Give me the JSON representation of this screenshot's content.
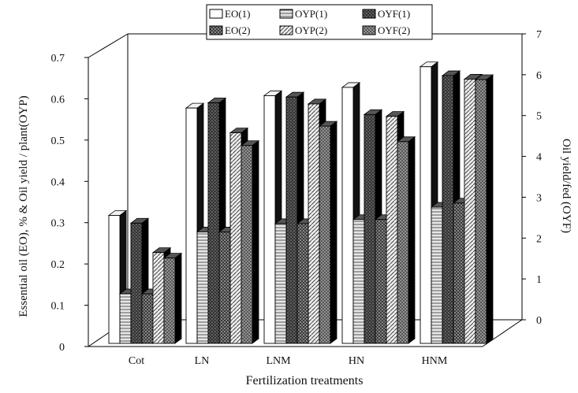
{
  "chart_data": {
    "type": "bar",
    "title": "",
    "xlabel": "Fertilization treatments",
    "ylabel_left": "Essential oil  (EO), % & Oil yield / plant(OYP)",
    "ylabel_right": "Oil yield/fed (OYF)",
    "categories": [
      "Cot",
      "LN",
      "LNM",
      "HN",
      "HNM"
    ],
    "ylim_left": [
      0,
      0.7
    ],
    "ylim_right": [
      0,
      7
    ],
    "yticks_left": [
      "0",
      "0.1",
      "0.2",
      "0.3",
      "0.4",
      "0.5",
      "0.6",
      "0.7"
    ],
    "yticks_right": [
      "0",
      "1",
      "2",
      "3",
      "4",
      "5",
      "6",
      "7"
    ],
    "legend_position": "top",
    "series": [
      {
        "name": "EO(1)",
        "axis": "left",
        "pattern": "white",
        "values": [
          0.31,
          0.57,
          0.6,
          0.62,
          0.67
        ]
      },
      {
        "name": "OYP(1)",
        "axis": "left",
        "pattern": "hatch-horizontal",
        "values": [
          0.12,
          0.27,
          0.29,
          0.3,
          0.33
        ]
      },
      {
        "name": "OYF(1)",
        "axis": "right",
        "pattern": "dark-dots",
        "values": [
          3.1,
          6.2,
          6.35,
          5.9,
          6.9
        ]
      },
      {
        "name": "EO(2)",
        "axis": "left",
        "pattern": "dark-checker",
        "values": [
          0.12,
          0.27,
          0.29,
          0.3,
          0.34
        ]
      },
      {
        "name": "OYP(2)",
        "axis": "left",
        "pattern": "hatch-diagonal",
        "values": [
          0.22,
          0.51,
          0.58,
          0.55,
          0.64
        ]
      },
      {
        "name": "OYF(2)",
        "axis": "right",
        "pattern": "dark-grid",
        "values": [
          2.2,
          5.1,
          5.6,
          5.2,
          6.8
        ]
      }
    ]
  }
}
